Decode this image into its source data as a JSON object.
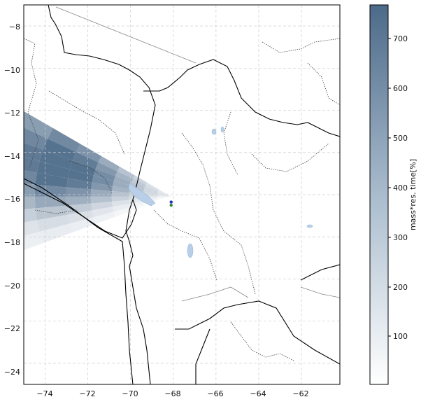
{
  "map": {
    "x_ticks": [
      "−74",
      "−72",
      "−70",
      "−68",
      "−66",
      "−64",
      "−62"
    ],
    "y_ticks": [
      "−8",
      "−10",
      "−12",
      "−14",
      "−16",
      "−18",
      "−20",
      "−22",
      "−24"
    ],
    "extent": {
      "lon_min": -75,
      "lon_max": -60.2,
      "lat_min": -25,
      "lat_max": -7
    },
    "source_point": {
      "lon": -68.1,
      "lat": -16.35,
      "color": "#1f2fbf"
    },
    "station_point": {
      "lon": -68.1,
      "lat": -16.5,
      "color": "#2e8b2e"
    }
  },
  "colorbar": {
    "label": "mass*res. time[%]",
    "ticks": [
      "100",
      "200",
      "300",
      "400",
      "500",
      "600",
      "700"
    ],
    "range": [
      0,
      770
    ],
    "color_low": "#ffffff",
    "color_high": "#4c6a89"
  }
}
